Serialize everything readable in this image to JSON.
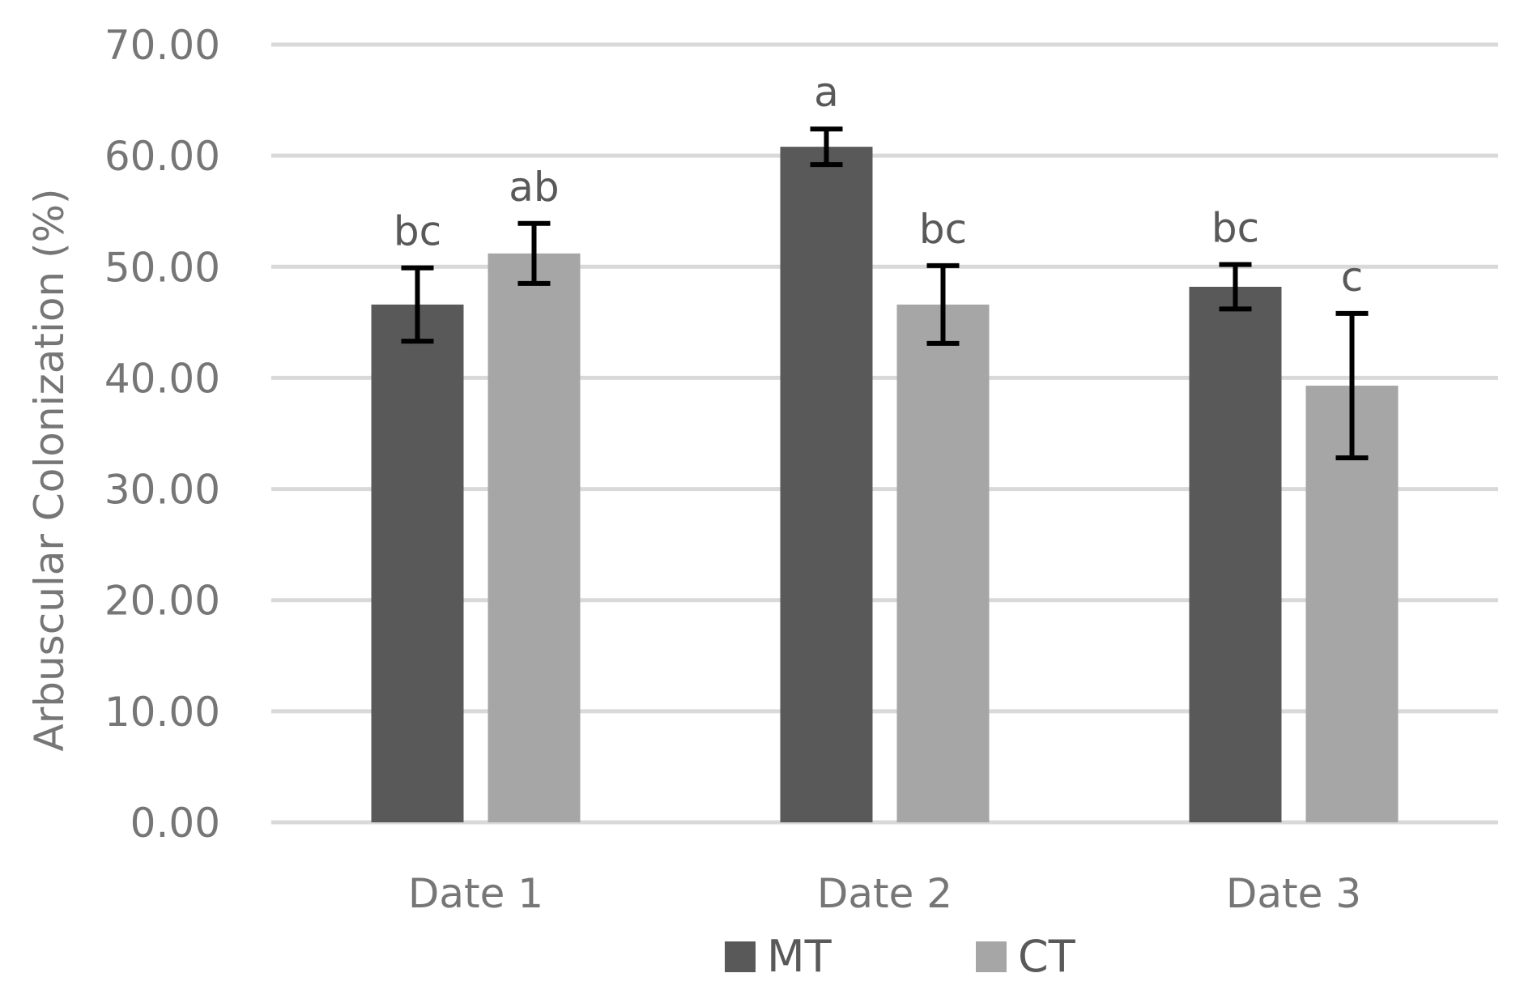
{
  "chart_data": {
    "type": "bar",
    "title": "",
    "xlabel": "",
    "ylabel": "Arbuscular Colonization (%)",
    "ylim": [
      0,
      70
    ],
    "yticks": [
      "0.00",
      "10.00",
      "20.00",
      "30.00",
      "40.00",
      "50.00",
      "60.00",
      "70.00"
    ],
    "grid": true,
    "legend_position": "bottom",
    "categories": [
      "Date 1",
      "Date 2",
      "Date 3"
    ],
    "series": [
      {
        "name": "MT",
        "color": "#595959",
        "values": [
          46.6,
          60.8,
          48.2
        ],
        "error": [
          3.3,
          1.6,
          2.0
        ],
        "significance": [
          "bc",
          "a",
          "bc"
        ]
      },
      {
        "name": "CT",
        "color": "#a6a6a6",
        "values": [
          51.2,
          46.6,
          39.3
        ],
        "error": [
          2.7,
          3.5,
          6.5
        ],
        "significance": [
          "ab",
          "bc",
          "c"
        ]
      }
    ],
    "gridline_color": "#d9d9d9",
    "errorbar_color": "#000000"
  }
}
